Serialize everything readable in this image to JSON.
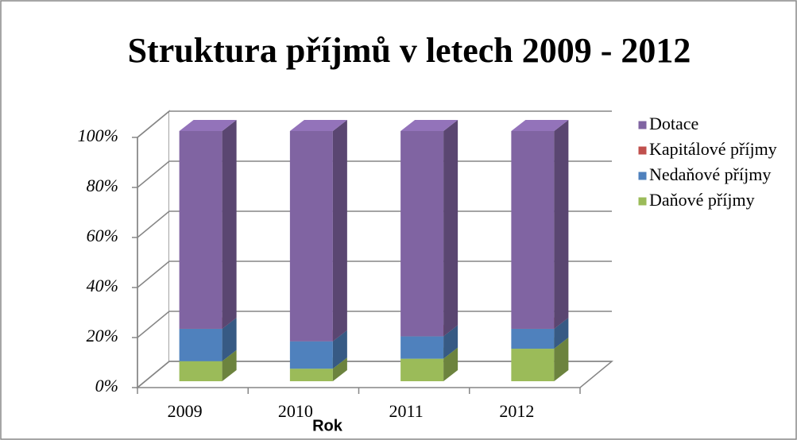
{
  "chart_data": {
    "type": "bar3d_stacked",
    "title": "Struktura příjmů v letech 2009 - 2012",
    "x_label": "Rok",
    "categories": [
      "2009",
      "2010",
      "2011",
      "2012"
    ],
    "series": [
      {
        "name": "Daňové příjmy",
        "color": "#9bbb59",
        "values": [
          8,
          5,
          9,
          13
        ]
      },
      {
        "name": "Nedaňové příjmy",
        "color": "#4f81bd",
        "values": [
          13,
          11,
          9,
          8
        ]
      },
      {
        "name": "Kapitálové příjmy",
        "color": "#c0504d",
        "values": [
          0,
          0,
          0,
          0
        ]
      },
      {
        "name": "Dotace",
        "color": "#8064a2",
        "values": [
          79,
          84,
          82,
          79
        ]
      }
    ],
    "ylim": [
      0,
      100
    ],
    "yticks": [
      {
        "value": 0,
        "label": "0%"
      },
      {
        "value": 20,
        "label": "20%"
      },
      {
        "value": 40,
        "label": "40%"
      },
      {
        "value": 60,
        "label": "60%"
      },
      {
        "value": 80,
        "label": "80%"
      },
      {
        "value": 100,
        "label": "100%"
      }
    ],
    "grid": true,
    "legend": "right"
  }
}
